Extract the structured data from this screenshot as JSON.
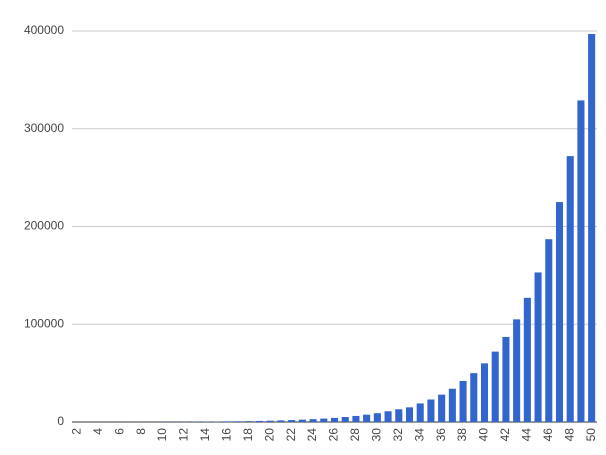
{
  "chart_data": {
    "type": "bar",
    "categories": [
      2,
      null,
      4,
      null,
      6,
      null,
      8,
      null,
      10,
      null,
      12,
      null,
      14,
      null,
      16,
      null,
      18,
      null,
      20,
      null,
      22,
      null,
      24,
      null,
      26,
      null,
      28,
      null,
      30,
      null,
      32,
      null,
      34,
      null,
      36,
      null,
      38,
      null,
      40,
      null,
      42,
      null,
      44,
      null,
      46,
      null,
      48,
      null,
      50
    ],
    "values": [
      43,
      52,
      63,
      76,
      92,
      110,
      135,
      165,
      200,
      240,
      290,
      350,
      420,
      510,
      620,
      750,
      900,
      1100,
      1350,
      1650,
      2000,
      2400,
      2900,
      3500,
      4200,
      5100,
      6200,
      7500,
      9000,
      11000,
      13000,
      15000,
      19000,
      23000,
      28000,
      34000,
      42000,
      50000,
      60000,
      72000,
      87000,
      105000,
      127000,
      153000,
      187000,
      225000,
      272000,
      329000,
      397000
    ],
    "color": "#3366cc",
    "ylim": [
      0,
      400000
    ],
    "yticks": [
      0,
      100000,
      200000,
      300000,
      400000
    ],
    "grid": true
  }
}
